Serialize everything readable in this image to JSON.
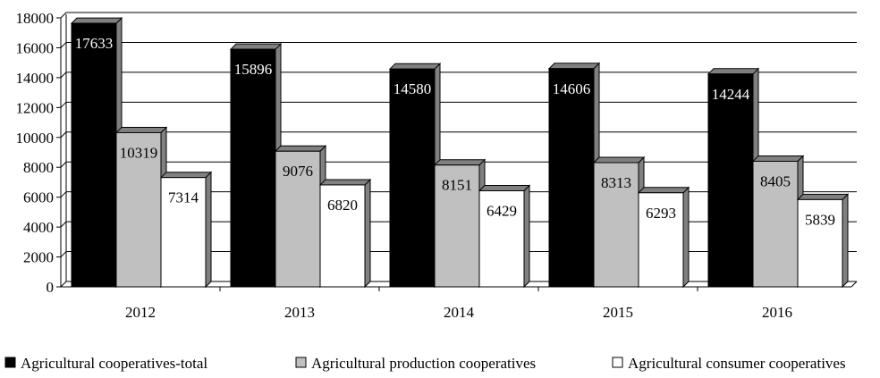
{
  "chart_data": {
    "type": "bar",
    "categories": [
      "2012",
      "2013",
      "2014",
      "2015",
      "2016"
    ],
    "series": [
      {
        "name": "Agricultural cooperatives-total",
        "values": [
          17633,
          15896,
          14580,
          14606,
          14244
        ],
        "color": "#000000",
        "label_color": "#ffffff"
      },
      {
        "name": "Agricultural production cooperatives",
        "values": [
          10319,
          9076,
          8151,
          8313,
          8405
        ],
        "color": "#c0c0c0",
        "label_color": "#000000"
      },
      {
        "name": "Agricultural consumer cooperatives",
        "values": [
          7314,
          6820,
          6429,
          6293,
          5839
        ],
        "color": "#ffffff",
        "label_color": "#000000"
      }
    ],
    "yticks": [
      "0",
      "2000",
      "4000",
      "6000",
      "8000",
      "10000",
      "12000",
      "14000",
      "16000",
      "18000"
    ],
    "ylim": [
      0,
      18000
    ],
    "grid": true,
    "legend_position": "bottom",
    "title": "",
    "xlabel": "",
    "ylabel": ""
  }
}
